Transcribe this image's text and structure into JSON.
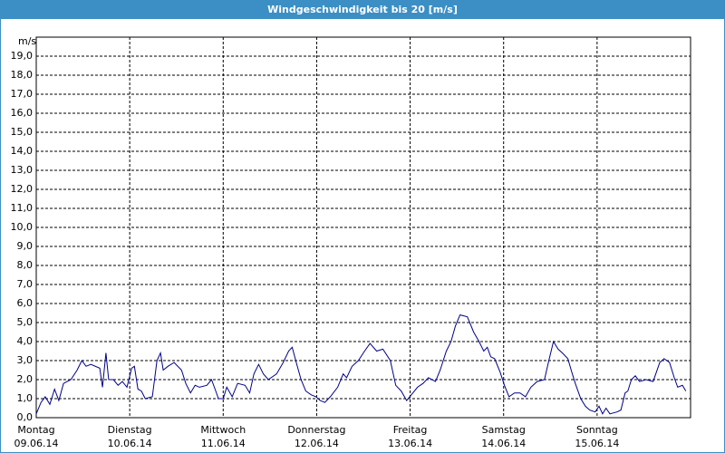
{
  "chart_data": {
    "type": "line",
    "title": "Windgeschwindigkeit bis 20 [m/s]",
    "y_unit": "m/s",
    "xlim": [
      0,
      168
    ],
    "ylim": [
      0,
      20
    ],
    "grid": true,
    "yticks": [
      {
        "value": 0,
        "label": "0,0"
      },
      {
        "value": 1,
        "label": "1,0"
      },
      {
        "value": 2,
        "label": "2,0"
      },
      {
        "value": 3,
        "label": "3,0"
      },
      {
        "value": 4,
        "label": "4,0"
      },
      {
        "value": 5,
        "label": "5,0"
      },
      {
        "value": 6,
        "label": "6,0"
      },
      {
        "value": 7,
        "label": "7,0"
      },
      {
        "value": 8,
        "label": "8,0"
      },
      {
        "value": 9,
        "label": "9,0"
      },
      {
        "value": 10,
        "label": "10,0"
      },
      {
        "value": 11,
        "label": "11,0"
      },
      {
        "value": 12,
        "label": "12,0"
      },
      {
        "value": 13,
        "label": "13,0"
      },
      {
        "value": 14,
        "label": "14,0"
      },
      {
        "value": 15,
        "label": "15,0"
      },
      {
        "value": 16,
        "label": "16,0"
      },
      {
        "value": 17,
        "label": "17,0"
      },
      {
        "value": 18,
        "label": "18,0"
      },
      {
        "value": 19,
        "label": "19,0"
      }
    ],
    "xticks": [
      {
        "value": 0,
        "label": "Montag",
        "date": "09.06.14"
      },
      {
        "value": 24,
        "label": "Dienstag",
        "date": "10.06.14"
      },
      {
        "value": 48,
        "label": "Mittwoch",
        "date": "11.06.14"
      },
      {
        "value": 72,
        "label": "Donnerstag",
        "date": "12.06.14"
      },
      {
        "value": 96,
        "label": "Freitag",
        "date": "13.06.14"
      },
      {
        "value": 120,
        "label": "Samstag",
        "date": "14.06.14"
      },
      {
        "value": 144,
        "label": "Sonntag",
        "date": "15.06.14"
      }
    ],
    "x": [
      0,
      1.2,
      2.3,
      3.5,
      4.7,
      5.8,
      7.0,
      8.9,
      10.5,
      11.7,
      12.8,
      14.0,
      16.3,
      17.0,
      17.9,
      18.6,
      19.8,
      21.0,
      22.1,
      23.3,
      24.5,
      25.2,
      26.1,
      27.0,
      28.0,
      29.8,
      31.0,
      31.9,
      32.6,
      33.8,
      35.4,
      37.3,
      38.4,
      39.6,
      40.8,
      41.9,
      43.8,
      45.0,
      45.9,
      46.8,
      48.0,
      48.9,
      50.3,
      51.7,
      53.6,
      54.8,
      55.9,
      57.1,
      58.3,
      59.6,
      61.7,
      63.4,
      64.8,
      65.7,
      66.9,
      68.0,
      69.2,
      70.6,
      71.8,
      72.9,
      74.1,
      75.5,
      77.4,
      78.8,
      79.7,
      81.1,
      82.7,
      84.3,
      85.7,
      87.4,
      89.0,
      90.9,
      92.3,
      93.7,
      95.1,
      96.7,
      97.9,
      99.3,
      100.7,
      102.5,
      103.7,
      105.3,
      106.5,
      107.6,
      108.8,
      110.7,
      112.3,
      113.7,
      114.9,
      115.8,
      116.7,
      117.7,
      119.1,
      120.2,
      121.4,
      122.8,
      124.2,
      125.6,
      127.0,
      128.6,
      130.5,
      131.6,
      132.8,
      134.0,
      135.1,
      136.5,
      137.5,
      138.4,
      139.8,
      141.0,
      142.1,
      143.5,
      144.5,
      145.4,
      146.3,
      147.3,
      149.1,
      150.1,
      151.2,
      151.9,
      152.8,
      153.8,
      154.9,
      156.6,
      158.4,
      160.1,
      161.2,
      162.6,
      163.8,
      164.7,
      165.9,
      166.8
    ],
    "series": [
      {
        "color": "#00008b",
        "values": [
          0.2,
          0.8,
          1.1,
          0.7,
          1.5,
          0.9,
          1.8,
          2.0,
          2.5,
          3.0,
          2.7,
          2.8,
          2.6,
          1.6,
          3.4,
          2.0,
          2.0,
          1.7,
          1.9,
          1.6,
          2.6,
          2.7,
          1.5,
          1.4,
          1.0,
          1.1,
          3.0,
          3.4,
          2.5,
          2.7,
          2.9,
          2.5,
          1.8,
          1.3,
          1.7,
          1.6,
          1.7,
          2.0,
          1.5,
          1.0,
          1.0,
          1.6,
          1.1,
          1.8,
          1.7,
          1.3,
          2.3,
          2.8,
          2.3,
          2.0,
          2.3,
          2.9,
          3.5,
          3.7,
          2.8,
          2.0,
          1.4,
          1.2,
          1.1,
          0.9,
          0.8,
          1.1,
          1.6,
          2.3,
          2.1,
          2.7,
          3.0,
          3.5,
          3.9,
          3.5,
          3.6,
          3.0,
          1.7,
          1.4,
          0.9,
          1.3,
          1.6,
          1.8,
          2.1,
          1.9,
          2.5,
          3.5,
          4.0,
          4.8,
          5.4,
          5.3,
          4.5,
          4.0,
          3.5,
          3.7,
          3.2,
          3.1,
          2.4,
          1.7,
          1.1,
          1.3,
          1.3,
          1.1,
          1.6,
          1.9,
          2.0,
          3.0,
          4.0,
          3.6,
          3.4,
          3.1,
          2.4,
          1.8,
          1.0,
          0.6,
          0.4,
          0.3,
          0.6,
          0.2,
          0.5,
          0.2,
          0.3,
          0.4,
          1.3,
          1.4,
          2.0,
          2.2,
          1.9,
          2.0,
          1.9,
          2.9,
          3.1,
          2.9,
          2.1,
          1.6,
          1.7,
          1.4
        ]
      }
    ]
  }
}
